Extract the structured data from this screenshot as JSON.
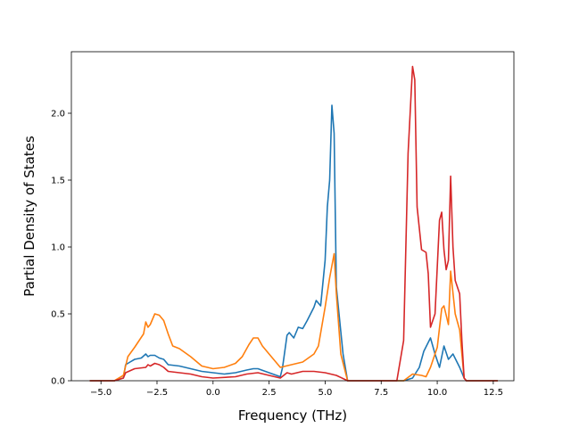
{
  "chart_data": {
    "type": "line",
    "title": "",
    "xlabel": "Frequency (THz)",
    "ylabel": "Partial Density of States",
    "xlim": [
      -6.32,
      13.42
    ],
    "ylim": [
      0,
      2.46
    ],
    "xticks": [
      -5.0,
      -2.5,
      0.0,
      2.5,
      5.0,
      7.5,
      10.0,
      12.5
    ],
    "xtick_labels": [
      "−5.0",
      "−2.5",
      "0.0",
      "2.5",
      "5.0",
      "7.5",
      "10.0",
      "12.5"
    ],
    "yticks": [
      0.0,
      0.5,
      1.0,
      1.5,
      2.0
    ],
    "ytick_labels": [
      "0.0",
      "0.5",
      "1.0",
      "1.5",
      "2.0"
    ],
    "grid": false,
    "legend": "none",
    "series": [
      {
        "color": "#1f77b4",
        "points": [
          [
            -5.5,
            0
          ],
          [
            -4.4,
            0
          ],
          [
            -4.0,
            0.02
          ],
          [
            -3.9,
            0.12
          ],
          [
            -3.7,
            0.14
          ],
          [
            -3.5,
            0.16
          ],
          [
            -3.2,
            0.17
          ],
          [
            -3.0,
            0.2
          ],
          [
            -2.9,
            0.18
          ],
          [
            -2.8,
            0.19
          ],
          [
            -2.6,
            0.19
          ],
          [
            -2.4,
            0.17
          ],
          [
            -2.2,
            0.16
          ],
          [
            -2.0,
            0.12
          ],
          [
            -1.5,
            0.11
          ],
          [
            -1.0,
            0.09
          ],
          [
            -0.5,
            0.07
          ],
          [
            0,
            0.06
          ],
          [
            0.5,
            0.05
          ],
          [
            1.0,
            0.06
          ],
          [
            1.5,
            0.08
          ],
          [
            1.8,
            0.09
          ],
          [
            2.0,
            0.09
          ],
          [
            2.5,
            0.06
          ],
          [
            3.0,
            0.03
          ],
          [
            3.1,
            0.1
          ],
          [
            3.3,
            0.34
          ],
          [
            3.4,
            0.36
          ],
          [
            3.6,
            0.32
          ],
          [
            3.8,
            0.4
          ],
          [
            4.0,
            0.39
          ],
          [
            4.2,
            0.45
          ],
          [
            4.5,
            0.55
          ],
          [
            4.6,
            0.6
          ],
          [
            4.8,
            0.56
          ],
          [
            5.0,
            0.9
          ],
          [
            5.1,
            1.3
          ],
          [
            5.2,
            1.5
          ],
          [
            5.3,
            2.06
          ],
          [
            5.4,
            1.85
          ],
          [
            5.5,
            0.7
          ],
          [
            5.8,
            0.2
          ],
          [
            6.0,
            0
          ],
          [
            8.5,
            0
          ],
          [
            8.9,
            0.02
          ],
          [
            9.2,
            0.1
          ],
          [
            9.4,
            0.22
          ],
          [
            9.7,
            0.32
          ],
          [
            9.9,
            0.2
          ],
          [
            10.1,
            0.1
          ],
          [
            10.3,
            0.26
          ],
          [
            10.5,
            0.16
          ],
          [
            10.7,
            0.2
          ],
          [
            11.0,
            0.1
          ],
          [
            11.2,
            0.02
          ],
          [
            11.3,
            0
          ],
          [
            12.7,
            0
          ]
        ]
      },
      {
        "color": "#ff7f0e",
        "points": [
          [
            -5.5,
            0
          ],
          [
            -4.4,
            0
          ],
          [
            -4.0,
            0.04
          ],
          [
            -3.8,
            0.18
          ],
          [
            -3.5,
            0.25
          ],
          [
            -3.3,
            0.3
          ],
          [
            -3.1,
            0.35
          ],
          [
            -3.0,
            0.44
          ],
          [
            -2.9,
            0.4
          ],
          [
            -2.8,
            0.42
          ],
          [
            -2.6,
            0.5
          ],
          [
            -2.4,
            0.49
          ],
          [
            -2.2,
            0.45
          ],
          [
            -2.0,
            0.35
          ],
          [
            -1.8,
            0.26
          ],
          [
            -1.5,
            0.24
          ],
          [
            -1.0,
            0.18
          ],
          [
            -0.5,
            0.11
          ],
          [
            0,
            0.09
          ],
          [
            0.5,
            0.1
          ],
          [
            1.0,
            0.13
          ],
          [
            1.3,
            0.18
          ],
          [
            1.6,
            0.27
          ],
          [
            1.8,
            0.32
          ],
          [
            2.0,
            0.32
          ],
          [
            2.2,
            0.26
          ],
          [
            2.5,
            0.2
          ],
          [
            3.0,
            0.1
          ],
          [
            3.5,
            0.12
          ],
          [
            4.0,
            0.14
          ],
          [
            4.5,
            0.2
          ],
          [
            4.7,
            0.26
          ],
          [
            5.0,
            0.55
          ],
          [
            5.2,
            0.77
          ],
          [
            5.4,
            0.95
          ],
          [
            5.5,
            0.65
          ],
          [
            5.7,
            0.2
          ],
          [
            6.0,
            0
          ],
          [
            8.5,
            0
          ],
          [
            8.9,
            0.05
          ],
          [
            9.3,
            0.04
          ],
          [
            9.5,
            0.03
          ],
          [
            9.7,
            0.1
          ],
          [
            10.0,
            0.25
          ],
          [
            10.2,
            0.54
          ],
          [
            10.3,
            0.56
          ],
          [
            10.5,
            0.42
          ],
          [
            10.6,
            0.82
          ],
          [
            10.8,
            0.5
          ],
          [
            11.0,
            0.38
          ],
          [
            11.2,
            0.02
          ],
          [
            11.3,
            0
          ],
          [
            12.7,
            0
          ]
        ]
      },
      {
        "color": "#d62728",
        "points": [
          [
            -5.5,
            0
          ],
          [
            -4.4,
            0
          ],
          [
            -4.0,
            0.02
          ],
          [
            -3.9,
            0.06
          ],
          [
            -3.5,
            0.09
          ],
          [
            -3.0,
            0.1
          ],
          [
            -2.9,
            0.12
          ],
          [
            -2.8,
            0.11
          ],
          [
            -2.6,
            0.13
          ],
          [
            -2.4,
            0.12
          ],
          [
            -2.2,
            0.1
          ],
          [
            -2.0,
            0.07
          ],
          [
            -1.5,
            0.06
          ],
          [
            -1.0,
            0.05
          ],
          [
            -0.5,
            0.03
          ],
          [
            0,
            0.02
          ],
          [
            1.0,
            0.03
          ],
          [
            1.5,
            0.05
          ],
          [
            2.0,
            0.06
          ],
          [
            2.5,
            0.04
          ],
          [
            3.0,
            0.02
          ],
          [
            3.3,
            0.06
          ],
          [
            3.5,
            0.05
          ],
          [
            4.0,
            0.07
          ],
          [
            4.5,
            0.07
          ],
          [
            5.0,
            0.06
          ],
          [
            5.5,
            0.04
          ],
          [
            6.0,
            0
          ],
          [
            8.2,
            0
          ],
          [
            8.5,
            0.3
          ],
          [
            8.7,
            1.7
          ],
          [
            8.9,
            2.35
          ],
          [
            9.0,
            2.25
          ],
          [
            9.1,
            1.3
          ],
          [
            9.3,
            0.98
          ],
          [
            9.5,
            0.96
          ],
          [
            9.6,
            0.8
          ],
          [
            9.7,
            0.4
          ],
          [
            9.9,
            0.5
          ],
          [
            10.1,
            1.2
          ],
          [
            10.2,
            1.26
          ],
          [
            10.3,
            0.98
          ],
          [
            10.4,
            0.83
          ],
          [
            10.5,
            0.9
          ],
          [
            10.6,
            1.53
          ],
          [
            10.7,
            1.0
          ],
          [
            10.8,
            0.75
          ],
          [
            11.0,
            0.65
          ],
          [
            11.1,
            0.3
          ],
          [
            11.2,
            0.02
          ],
          [
            11.3,
            0
          ],
          [
            12.7,
            0
          ]
        ]
      }
    ]
  }
}
